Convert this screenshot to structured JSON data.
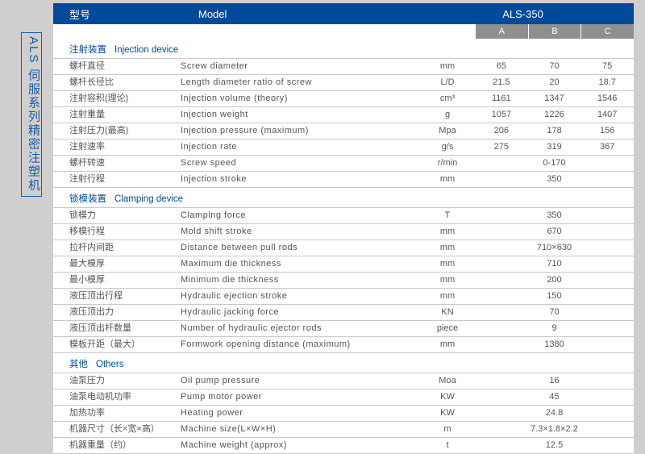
{
  "vertical_label": "ALS 伺服系列精密注塑机",
  "header": {
    "type_cn": "型号",
    "model_en": "Model",
    "model_val": "ALS-350"
  },
  "abc": [
    "A",
    "B",
    "C"
  ],
  "sections": [
    {
      "title_cn": "注射装置",
      "title_en": "Injection device",
      "rows": [
        {
          "cn": "螺杆直径",
          "en": "Screw diameter",
          "unit": "mm",
          "vals": [
            "65",
            "70",
            "75"
          ]
        },
        {
          "cn": "螺杆长径比",
          "en": "Length diameter ratio of screw",
          "unit": "L/D",
          "vals": [
            "21.5",
            "20",
            "18.7"
          ]
        },
        {
          "cn": "注射容积(理论)",
          "en": "Injection volume (theory)",
          "unit": "cm³",
          "vals": [
            "1161",
            "1347",
            "1546"
          ]
        },
        {
          "cn": "注射重量",
          "en": "Injection weight",
          "unit": "g",
          "vals": [
            "1057",
            "1226",
            "1407"
          ]
        },
        {
          "cn": "注射压力(最高)",
          "en": "Injection pressure (maximum)",
          "unit": "Mpa",
          "vals": [
            "206",
            "178",
            "156"
          ]
        },
        {
          "cn": "注射速率",
          "en": "Injection rate",
          "unit": "g/s",
          "vals": [
            "275",
            "319",
            "367"
          ]
        },
        {
          "cn": "螺杆转速",
          "en": "Screw speed",
          "unit": "r/min",
          "vals_merged": "0-170"
        },
        {
          "cn": "注射行程",
          "en": "Injection stroke",
          "unit": "mm",
          "vals_merged": "350"
        }
      ]
    },
    {
      "title_cn": "锁模装置",
      "title_en": "Clamping device",
      "rows": [
        {
          "cn": "锁模力",
          "en": "Clamping force",
          "unit": "T",
          "vals_merged": "350"
        },
        {
          "cn": "移模行程",
          "en": "Mold shift stroke",
          "unit": "mm",
          "vals_merged": "670"
        },
        {
          "cn": "拉杆内间距",
          "en": "Distance between pull rods",
          "unit": "mm",
          "vals_merged": "710×630"
        },
        {
          "cn": "最大模厚",
          "en": "Maximum die thickness",
          "unit": "mm",
          "vals_merged": "710"
        },
        {
          "cn": "最小模厚",
          "en": "Minimum die thickness",
          "unit": "mm",
          "vals_merged": "200"
        },
        {
          "cn": "液压顶出行程",
          "en": "Hydraulic ejection stroke",
          "unit": "mm",
          "vals_merged": "150"
        },
        {
          "cn": "液压顶出力",
          "en": "Hydraulic jacking force",
          "unit": "KN",
          "vals_merged": "70"
        },
        {
          "cn": "液压顶出杆数量",
          "en": "Number of hydraulic ejector rods",
          "unit": "piece",
          "vals_merged": "9"
        },
        {
          "cn": "模板开距（最大）",
          "en": "Formwork opening distance (maximum)",
          "unit": "mm",
          "vals_merged": "1380"
        }
      ]
    },
    {
      "title_cn": "其他",
      "title_en": "Others",
      "rows": [
        {
          "cn": "油泵压力",
          "en": "Oil pump pressure",
          "unit": "Moa",
          "vals_merged": "16"
        },
        {
          "cn": "油泵电动机功率",
          "en": "Pump motor power",
          "unit": "KW",
          "vals_merged": "45"
        },
        {
          "cn": "加热功率",
          "en": "Heating power",
          "unit": "KW",
          "vals_merged": "24.8"
        },
        {
          "cn": "机器尺寸（长×宽×高）",
          "en": "Machine size(L×W×H)",
          "unit": "m",
          "vals_merged": "7.3×1.8×2.2"
        },
        {
          "cn": "机器重量（约）",
          "en": "Machine weight (approx)",
          "unit": "t",
          "vals_merged": "12.5"
        }
      ]
    }
  ]
}
